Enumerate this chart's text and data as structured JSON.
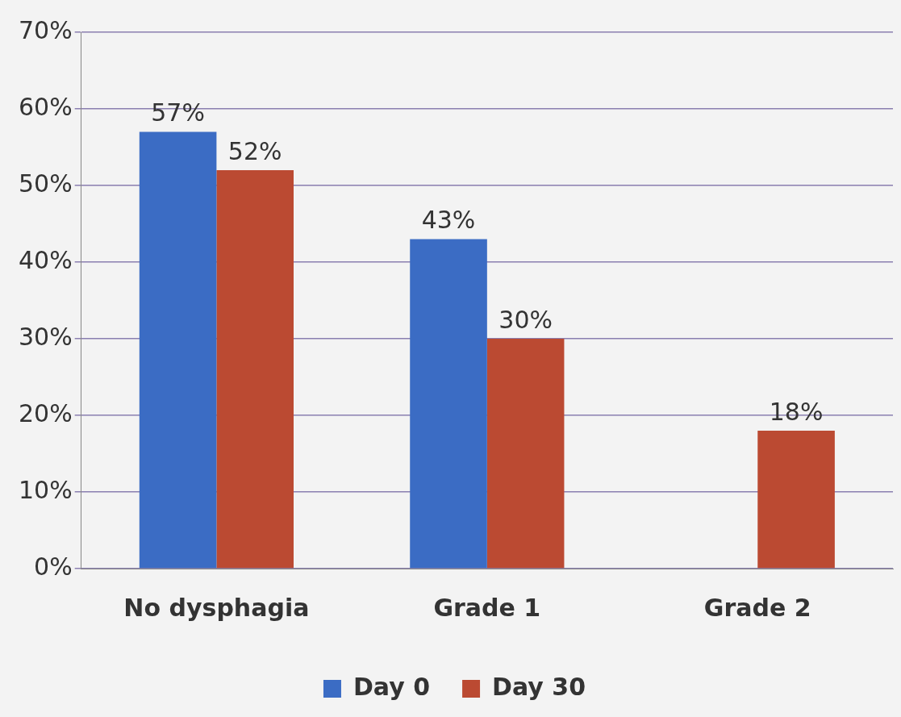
{
  "chart_data": {
    "type": "bar",
    "categories": [
      "No dysphagia",
      "Grade 1",
      "Grade 2"
    ],
    "series": [
      {
        "name": "Day 0",
        "color": "#3b6cc4",
        "values": [
          57,
          43,
          null
        ],
        "value_labels": [
          "57%",
          "43%",
          null
        ]
      },
      {
        "name": "Day 30",
        "color": "#bb4a32",
        "values": [
          52,
          30,
          18
        ],
        "value_labels": [
          "52%",
          "30%",
          "18%"
        ]
      }
    ],
    "ylim": [
      0,
      70
    ],
    "yticks": [
      {
        "value": 0,
        "label": "0%"
      },
      {
        "value": 10,
        "label": "10%"
      },
      {
        "value": 20,
        "label": "20%"
      },
      {
        "value": 30,
        "label": "30%"
      },
      {
        "value": 40,
        "label": "40%"
      },
      {
        "value": 50,
        "label": "50%"
      },
      {
        "value": 60,
        "label": "60%"
      },
      {
        "value": 70,
        "label": "70%"
      }
    ],
    "grid": "y",
    "legend": "bottom"
  }
}
